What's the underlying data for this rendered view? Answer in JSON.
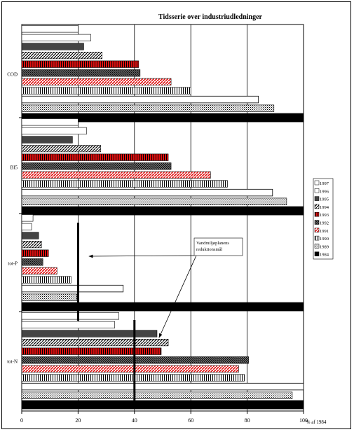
{
  "chart_data": {
    "type": "bar",
    "orientation": "horizontal",
    "title": "Tidsserie over industriudledninger",
    "xlabel": "% af 1984",
    "xlim": [
      0,
      100
    ],
    "xticks": [
      "0",
      "20",
      "40",
      "60",
      "80",
      "100"
    ],
    "grid": true,
    "legend_position": "right",
    "categories": [
      "COD",
      "BI5",
      "tot-P",
      "tot-N"
    ],
    "series": [
      {
        "name": "1997",
        "fill": "white",
        "values": [
          20,
          20,
          4,
          34.5
        ]
      },
      {
        "name": "1996",
        "fill": "white",
        "values": [
          24.5,
          23,
          3.5,
          33
        ]
      },
      {
        "name": "1995",
        "fill": "dark",
        "values": [
          22,
          18,
          6,
          48
        ]
      },
      {
        "name": "1994",
        "fill": "diagonal",
        "values": [
          28.5,
          28,
          7,
          52
        ]
      },
      {
        "name": "1993",
        "fill": "red-vertical",
        "values": [
          41.5,
          52,
          9.5,
          49.5
        ]
      },
      {
        "name": "1992",
        "fill": "diagonal-dense",
        "values": [
          42,
          53,
          7.5,
          80.5
        ]
      },
      {
        "name": "1991",
        "fill": "red-diagonal",
        "values": [
          53,
          67,
          12.5,
          77
        ]
      },
      {
        "name": "1990",
        "fill": "vertical-lines",
        "values": [
          60,
          73,
          17.5,
          79
        ]
      },
      {
        "name": "1989",
        "fill": "dots",
        "values": [
          89.5,
          94,
          19.5,
          96
        ]
      },
      {
        "name": "1984",
        "fill": "black",
        "values": [
          100,
          100,
          100,
          100
        ]
      }
    ],
    "outline_values": [
      84,
      89,
      36,
      100
    ],
    "target_lines": [
      {
        "category": "tot-P",
        "value": 20
      },
      {
        "category": "tot-N",
        "value": 40
      }
    ],
    "annotation": {
      "text_lines": [
        "Vandmiljøplanens",
        "reduktionsmål"
      ]
    },
    "colors": {
      "red": "#e01010",
      "dark": "#444444",
      "black": "#000000"
    }
  }
}
